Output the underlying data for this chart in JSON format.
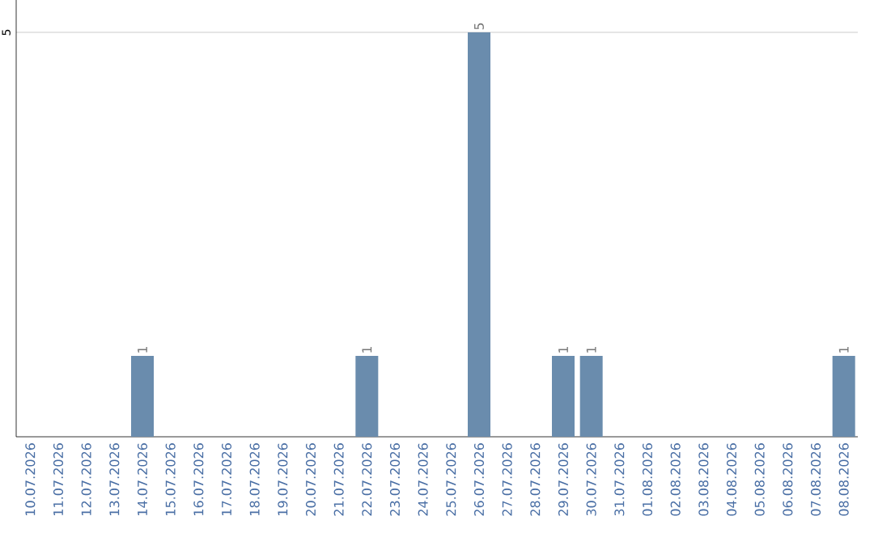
{
  "chart_data": {
    "type": "bar",
    "categories": [
      "10.07.2026",
      "11.07.2026",
      "12.07.2026",
      "13.07.2026",
      "14.07.2026",
      "15.07.2026",
      "16.07.2026",
      "17.07.2026",
      "18.07.2026",
      "19.07.2026",
      "20.07.2026",
      "21.07.2026",
      "22.07.2026",
      "23.07.2026",
      "24.07.2026",
      "25.07.2026",
      "26.07.2026",
      "27.07.2026",
      "28.07.2026",
      "29.07.2026",
      "30.07.2026",
      "31.07.2026",
      "01.08.2026",
      "02.08.2026",
      "03.08.2026",
      "04.08.2026",
      "05.08.2026",
      "06.08.2026",
      "07.08.2026",
      "08.08.2026"
    ],
    "values": [
      0,
      0,
      0,
      0,
      1,
      0,
      0,
      0,
      0,
      0,
      0,
      0,
      1,
      0,
      0,
      0,
      5,
      0,
      0,
      1,
      1,
      0,
      0,
      0,
      0,
      0,
      0,
      0,
      0,
      1
    ],
    "value_labels": [
      null,
      null,
      null,
      null,
      "1",
      null,
      null,
      null,
      null,
      null,
      null,
      null,
      "1",
      null,
      null,
      null,
      "5",
      null,
      null,
      "1",
      "1",
      null,
      null,
      null,
      null,
      null,
      null,
      null,
      null,
      "1"
    ],
    "color": "#6a8cad",
    "ylim": [
      0,
      5.4
    ],
    "yticks": [
      5
    ],
    "grid": "y"
  }
}
